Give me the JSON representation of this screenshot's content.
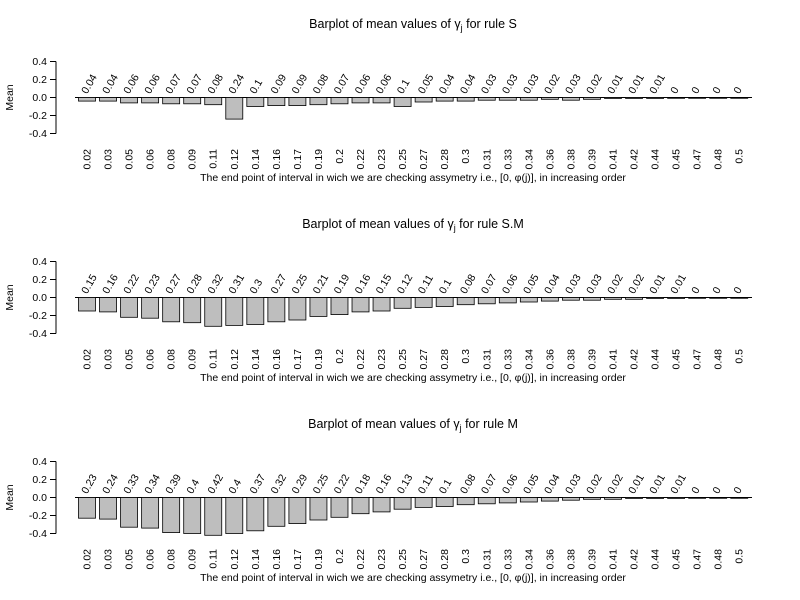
{
  "chart_data": [
    {
      "type": "bar",
      "title_main": "Barplot of mean values of γ",
      "title_sub": "j",
      "title_end": " for rule S",
      "ylabel": "Mean",
      "xlabel": "The end point of interval in wich we are checking assymetry i.e., [0, φ(j)], in increasing order",
      "ylim": [
        -0.4,
        0.4
      ],
      "yticks": [
        "0.4",
        "0.2",
        "0.0",
        "-0.2",
        "-0.4"
      ],
      "categories": [
        "0.02",
        "0.03",
        "0.05",
        "0.06",
        "0.08",
        "0.09",
        "0.11",
        "0.12",
        "0.14",
        "0.16",
        "0.17",
        "0.19",
        "0.2",
        "0.22",
        "0.23",
        "0.25",
        "0.27",
        "0.28",
        "0.3",
        "0.31",
        "0.33",
        "0.34",
        "0.36",
        "0.38",
        "0.39",
        "0.41",
        "0.42",
        "0.44",
        "0.45",
        "0.47",
        "0.48",
        "0.5"
      ],
      "values": [
        -0.04,
        -0.04,
        -0.06,
        -0.06,
        -0.07,
        -0.07,
        -0.08,
        -0.24,
        -0.1,
        -0.09,
        -0.09,
        -0.08,
        -0.07,
        -0.06,
        -0.06,
        -0.1,
        -0.05,
        -0.04,
        -0.04,
        -0.03,
        -0.03,
        -0.03,
        -0.02,
        -0.03,
        -0.02,
        -0.01,
        -0.01,
        -0.01,
        0,
        0,
        0,
        0
      ],
      "labels": [
        "0.04",
        "0.04",
        "0.06",
        "0.06",
        "0.07",
        "0.07",
        "0.08",
        "0.24",
        "0.1",
        "0.09",
        "0.09",
        "0.08",
        "0.07",
        "0.06",
        "0.06",
        "0.1",
        "0.05",
        "0.04",
        "0.04",
        "0.03",
        "0.03",
        "0.03",
        "0.02",
        "0.03",
        "0.02",
        "0.01",
        "0.01",
        "0.01",
        "0",
        "0",
        "0",
        "0"
      ],
      "bar_color": "#bebebe"
    },
    {
      "type": "bar",
      "title_main": "Barplot of mean values of γ",
      "title_sub": "j",
      "title_end": " for rule S.M",
      "ylabel": "Mean",
      "xlabel": "The end point of interval in wich we are checking assymetry i.e., [0, φ(j)], in increasing order",
      "ylim": [
        -0.4,
        0.4
      ],
      "yticks": [
        "0.4",
        "0.2",
        "0.0",
        "-0.2",
        "-0.4"
      ],
      "categories": [
        "0.02",
        "0.03",
        "0.05",
        "0.06",
        "0.08",
        "0.09",
        "0.11",
        "0.12",
        "0.14",
        "0.16",
        "0.17",
        "0.19",
        "0.2",
        "0.22",
        "0.23",
        "0.25",
        "0.27",
        "0.28",
        "0.3",
        "0.31",
        "0.33",
        "0.34",
        "0.36",
        "0.38",
        "0.39",
        "0.41",
        "0.42",
        "0.44",
        "0.45",
        "0.47",
        "0.48",
        "0.5"
      ],
      "values": [
        -0.15,
        -0.16,
        -0.22,
        -0.23,
        -0.27,
        -0.28,
        -0.32,
        -0.31,
        -0.3,
        -0.27,
        -0.25,
        -0.21,
        -0.19,
        -0.16,
        -0.15,
        -0.12,
        -0.11,
        -0.1,
        -0.08,
        -0.07,
        -0.06,
        -0.05,
        -0.04,
        -0.03,
        -0.03,
        -0.02,
        -0.02,
        -0.01,
        -0.01,
        0,
        0,
        0
      ],
      "labels": [
        "0.15",
        "0.16",
        "0.22",
        "0.23",
        "0.27",
        "0.28",
        "0.32",
        "0.31",
        "0.3",
        "0.27",
        "0.25",
        "0.21",
        "0.19",
        "0.16",
        "0.15",
        "0.12",
        "0.11",
        "0.1",
        "0.08",
        "0.07",
        "0.06",
        "0.05",
        "0.04",
        "0.03",
        "0.03",
        "0.02",
        "0.02",
        "0.01",
        "0.01",
        "0",
        "0",
        "0"
      ],
      "bar_color": "#bebebe"
    },
    {
      "type": "bar",
      "title_main": "Barplot of mean values of γ",
      "title_sub": "j",
      "title_end": " for rule M",
      "ylabel": "Mean",
      "xlabel": "The end point of interval in wich we are checking assymetry i.e., [0, φ(j)], in increasing order",
      "ylim": [
        -0.4,
        0.4
      ],
      "yticks": [
        "0.4",
        "0.2",
        "0.0",
        "-0.2",
        "-0.4"
      ],
      "categories": [
        "0.02",
        "0.03",
        "0.05",
        "0.06",
        "0.08",
        "0.09",
        "0.11",
        "0.12",
        "0.14",
        "0.16",
        "0.17",
        "0.19",
        "0.2",
        "0.22",
        "0.23",
        "0.25",
        "0.27",
        "0.28",
        "0.3",
        "0.31",
        "0.33",
        "0.34",
        "0.36",
        "0.38",
        "0.39",
        "0.41",
        "0.42",
        "0.44",
        "0.45",
        "0.47",
        "0.48",
        "0.5"
      ],
      "values": [
        -0.23,
        -0.24,
        -0.33,
        -0.34,
        -0.39,
        -0.4,
        -0.42,
        -0.4,
        -0.37,
        -0.32,
        -0.29,
        -0.25,
        -0.22,
        -0.18,
        -0.16,
        -0.13,
        -0.11,
        -0.1,
        -0.08,
        -0.07,
        -0.06,
        -0.05,
        -0.04,
        -0.03,
        -0.02,
        -0.02,
        -0.01,
        -0.01,
        -0.01,
        0,
        0,
        0
      ],
      "labels": [
        "0.23",
        "0.24",
        "0.33",
        "0.34",
        "0.39",
        "0.4",
        "0.42",
        "0.4",
        "0.37",
        "0.32",
        "0.29",
        "0.25",
        "0.22",
        "0.18",
        "0.16",
        "0.13",
        "0.11",
        "0.1",
        "0.08",
        "0.07",
        "0.06",
        "0.05",
        "0.04",
        "0.03",
        "0.02",
        "0.02",
        "0.01",
        "0.01",
        "0.01",
        "0",
        "0",
        "0"
      ],
      "bar_color": "#bebebe"
    }
  ]
}
